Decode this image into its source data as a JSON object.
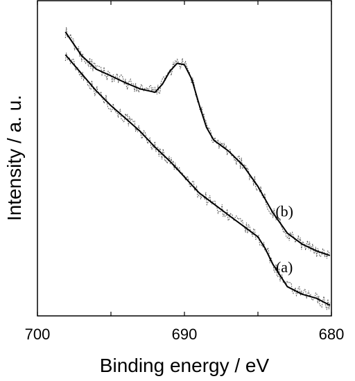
{
  "chart_data": {
    "type": "line",
    "xlabel": "Binding energy / eV",
    "ylabel": "Intensity / a. u.",
    "xlim": [
      700,
      680
    ],
    "ylim": [
      0,
      1
    ],
    "x_reversed": true,
    "xticks": [
      700,
      690,
      680
    ],
    "xtick_labels": [
      "700",
      "690",
      "680"
    ],
    "y_tick_labels": false,
    "grid": false,
    "legend": "none",
    "line_color": "#000000",
    "series": [
      {
        "name": "(a)",
        "x": [
          698.1,
          697.0,
          696.0,
          695.0,
          694.0,
          693.0,
          692.0,
          691.0,
          690.0,
          689.0,
          688.0,
          687.0,
          686.0,
          685.0,
          684.5,
          684.0,
          683.0,
          682.0,
          681.0,
          680.1
        ],
        "y": [
          0.918,
          0.85,
          0.788,
          0.735,
          0.689,
          0.642,
          0.586,
          0.536,
          0.479,
          0.422,
          0.382,
          0.342,
          0.303,
          0.264,
          0.222,
          0.167,
          0.085,
          0.058,
          0.043,
          0.018
        ]
      },
      {
        "name": "(b)",
        "x": [
          698.1,
          697.0,
          696.0,
          695.0,
          694.0,
          693.0,
          692.0,
          691.5,
          691.0,
          690.5,
          690.0,
          689.5,
          689.0,
          688.5,
          688.0,
          687.0,
          686.0,
          685.0,
          684.0,
          683.0,
          682.0,
          681.0,
          680.1
        ],
        "y": [
          1.0,
          0.915,
          0.866,
          0.842,
          0.817,
          0.795,
          0.783,
          0.812,
          0.858,
          0.887,
          0.882,
          0.83,
          0.739,
          0.657,
          0.611,
          0.572,
          0.52,
          0.445,
          0.352,
          0.277,
          0.238,
          0.213,
          0.197
        ]
      }
    ]
  }
}
